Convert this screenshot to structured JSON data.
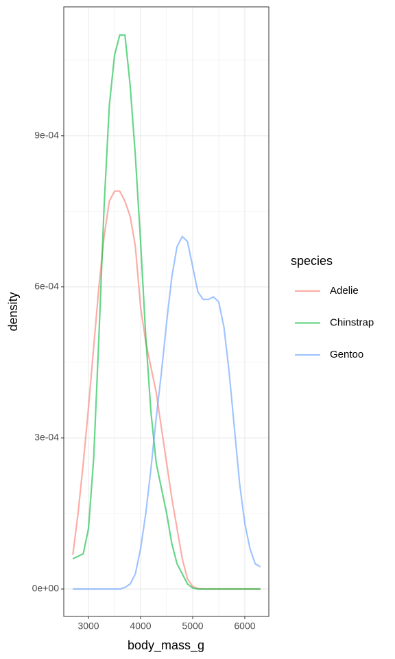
{
  "chart_data": {
    "type": "line",
    "xlabel": "body_mass_g",
    "ylabel": "density",
    "x": [
      2700,
      2800,
      2900,
      3000,
      3100,
      3200,
      3300,
      3400,
      3500,
      3600,
      3700,
      3800,
      3900,
      4000,
      4100,
      4200,
      4300,
      4400,
      4500,
      4600,
      4700,
      4800,
      4900,
      5000,
      5100,
      5200,
      5300,
      5400,
      5500,
      5600,
      5700,
      5800,
      5900,
      6000,
      6100,
      6200,
      6300
    ],
    "series": [
      {
        "name": "Adelie",
        "color": "#F8766D",
        "values": [
          6.8e-05,
          0.00015,
          0.00025,
          0.00036,
          0.00048,
          0.0006,
          0.0007,
          0.00077,
          0.00079,
          0.00079,
          0.00077,
          0.00074,
          0.00068,
          0.00056,
          0.00049,
          0.00044,
          0.00039,
          0.00032,
          0.00025,
          0.00018,
          0.00012,
          6e-05,
          2e-05,
          5e-06,
          1e-06,
          0,
          0,
          0,
          0,
          0,
          0,
          0,
          0,
          0,
          0,
          0,
          0
        ]
      },
      {
        "name": "Chinstrap",
        "color": "#00BA38",
        "values": [
          6e-05,
          6.5e-05,
          7e-05,
          0.00012,
          0.00026,
          0.0005,
          0.00076,
          0.00096,
          0.00106,
          0.0011,
          0.0011,
          0.001,
          0.00086,
          0.00069,
          0.0005,
          0.00035,
          0.00025,
          0.0002,
          0.00015,
          9e-05,
          5e-05,
          3e-05,
          1e-05,
          2e-06,
          0,
          0,
          0,
          0,
          0,
          0,
          0,
          0,
          0,
          0,
          0,
          0,
          0
        ]
      },
      {
        "name": "Gentoo",
        "color": "#619CFF",
        "values": [
          0,
          0,
          0,
          0,
          0,
          0,
          0,
          0,
          0,
          0,
          3e-06,
          1e-05,
          3e-05,
          8e-05,
          0.00015,
          0.00024,
          0.00034,
          0.00043,
          0.00053,
          0.00062,
          0.00068,
          0.0007,
          0.00069,
          0.00064,
          0.00059,
          0.000575,
          0.000575,
          0.00058,
          0.00057,
          0.00052,
          0.00043,
          0.00032,
          0.00021,
          0.00013,
          8e-05,
          5e-05,
          4.4e-05
        ]
      }
    ],
    "legend_title": "species",
    "legend": "right",
    "grid": true,
    "xlim": [
      2526,
      6461
    ],
    "xticks": [
      3000,
      4000,
      5000,
      6000
    ],
    "xminorticks": [
      3500,
      4500,
      5500
    ],
    "ylim": [
      -5.45e-05,
      0.001156
    ],
    "yticks": [
      {
        "value": 0,
        "label": "0e+00"
      },
      {
        "value": 0.0003,
        "label": "3e-04"
      },
      {
        "value": 0.0006,
        "label": "6e-04"
      },
      {
        "value": 0.0009,
        "label": "9e-04"
      }
    ],
    "yminorticks": [
      0.00015,
      0.00045,
      0.00075,
      0.00105
    ]
  }
}
